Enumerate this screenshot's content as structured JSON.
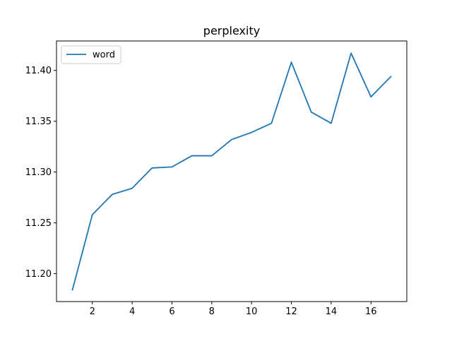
{
  "chart_data": {
    "type": "line",
    "title": "perplexity",
    "xlabel": "",
    "ylabel": "",
    "xlim": [
      0.2,
      17.8
    ],
    "ylim": [
      11.1725,
      11.429
    ],
    "xticks": [
      2,
      4,
      6,
      8,
      10,
      12,
      14,
      16
    ],
    "xtick_labels": [
      "2",
      "4",
      "6",
      "8",
      "10",
      "12",
      "14",
      "16"
    ],
    "yticks": [
      11.2,
      11.25,
      11.3,
      11.35,
      11.4
    ],
    "ytick_labels": [
      "11.20",
      "11.25",
      "11.30",
      "11.35",
      "11.40"
    ],
    "grid": false,
    "legend_position": "upper-left",
    "series": [
      {
        "name": "word",
        "color": "#1f77b4",
        "x": [
          1,
          2,
          3,
          4,
          5,
          6,
          7,
          8,
          9,
          10,
          11,
          12,
          13,
          14,
          15,
          16,
          17
        ],
        "y": [
          11.184,
          11.258,
          11.278,
          11.284,
          11.304,
          11.305,
          11.316,
          11.316,
          11.332,
          11.339,
          11.348,
          11.408,
          11.359,
          11.348,
          11.417,
          11.374,
          11.394
        ]
      }
    ]
  }
}
